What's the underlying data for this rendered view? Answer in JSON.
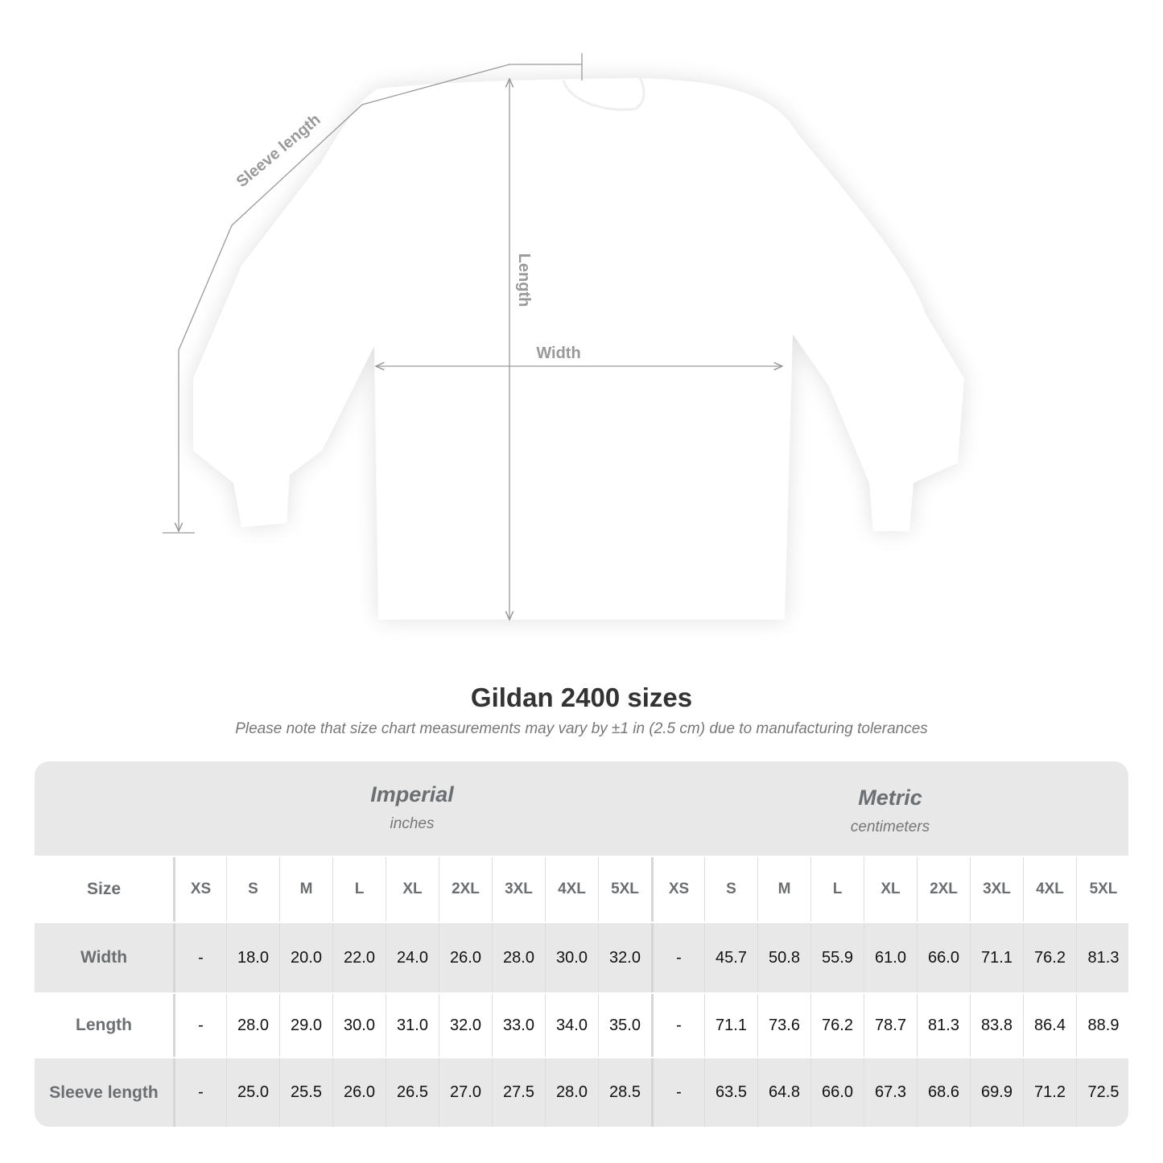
{
  "diagram": {
    "labels": {
      "sleeve": "Sleeve length",
      "length": "Length",
      "width": "Width"
    },
    "garment_color": "#ffffff",
    "line_color": "#999999"
  },
  "title": "Gildan 2400 sizes",
  "note": "Please note that size chart measurements may vary by ±1 in (2.5 cm) due to manufacturing tolerances",
  "table": {
    "imperial": {
      "name": "Imperial",
      "unit": "inches"
    },
    "metric": {
      "name": "Metric",
      "unit": "centimeters"
    },
    "size_label": "Size",
    "sizes": [
      "XS",
      "S",
      "M",
      "L",
      "XL",
      "2XL",
      "3XL",
      "4XL",
      "5XL"
    ],
    "rows": [
      {
        "label": "Width",
        "imperial": [
          "-",
          "18.0",
          "20.0",
          "22.0",
          "24.0",
          "26.0",
          "28.0",
          "30.0",
          "32.0"
        ],
        "metric": [
          "-",
          "45.7",
          "50.8",
          "55.9",
          "61.0",
          "66.0",
          "71.1",
          "76.2",
          "81.3"
        ]
      },
      {
        "label": "Length",
        "imperial": [
          "-",
          "28.0",
          "29.0",
          "30.0",
          "31.0",
          "32.0",
          "33.0",
          "34.0",
          "35.0"
        ],
        "metric": [
          "-",
          "71.1",
          "73.6",
          "76.2",
          "78.7",
          "81.3",
          "83.8",
          "86.4",
          "88.9"
        ]
      },
      {
        "label": "Sleeve length",
        "imperial": [
          "-",
          "25.0",
          "25.5",
          "26.0",
          "26.5",
          "27.0",
          "27.5",
          "28.0",
          "28.5"
        ],
        "metric": [
          "-",
          "63.5",
          "64.8",
          "66.0",
          "67.3",
          "68.6",
          "69.9",
          "71.2",
          "72.5"
        ]
      }
    ],
    "colors": {
      "shade": "#e8e8e8",
      "label": "#6b6f72"
    }
  }
}
